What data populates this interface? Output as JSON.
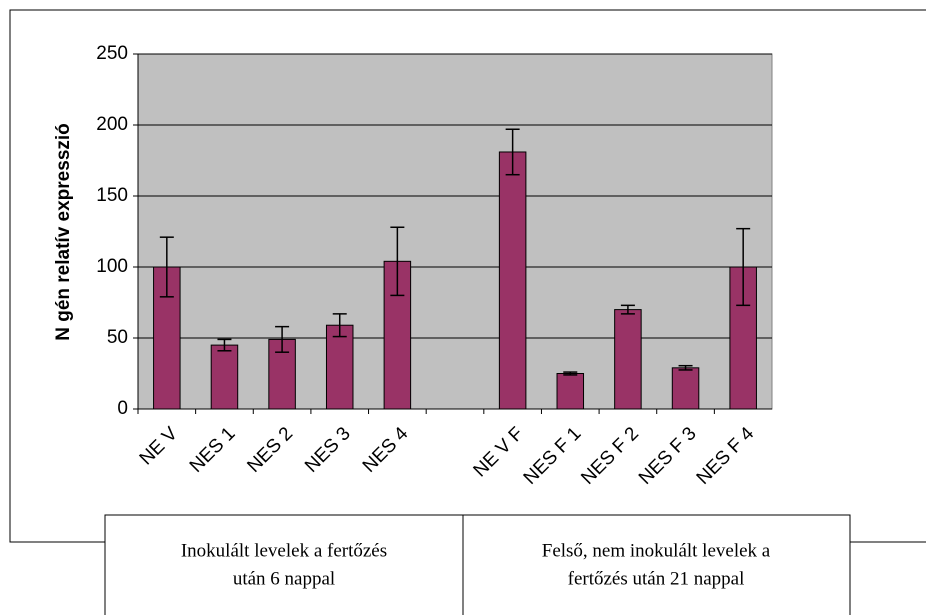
{
  "chart_data": {
    "type": "bar",
    "y_label": "N gén relatív expresszió",
    "categories": [
      "NE V",
      "NES 1",
      "NES 2",
      "NES 3",
      "NES 4",
      null,
      "NE V F",
      "NES F 1",
      "NES F 2",
      "NES F 3",
      "NES F 4"
    ],
    "values": [
      100,
      45,
      49,
      59,
      104,
      null,
      181,
      25,
      70,
      29,
      100
    ],
    "errors": [
      21,
      4,
      9,
      8,
      24,
      null,
      16,
      1,
      3,
      1.5,
      27
    ],
    "color": "#993366",
    "ylim": [
      0,
      250
    ],
    "yticks": [
      0,
      50,
      100,
      150,
      200,
      250
    ],
    "grid": true
  },
  "table": {
    "cells": [
      {
        "lines": [
          "Inokulált levelek a fertőzés",
          "után 6 nappal"
        ]
      },
      {
        "lines": [
          "Felső, nem inokulált levelek a",
          "fertőzés után 21 nappal"
        ]
      }
    ]
  }
}
